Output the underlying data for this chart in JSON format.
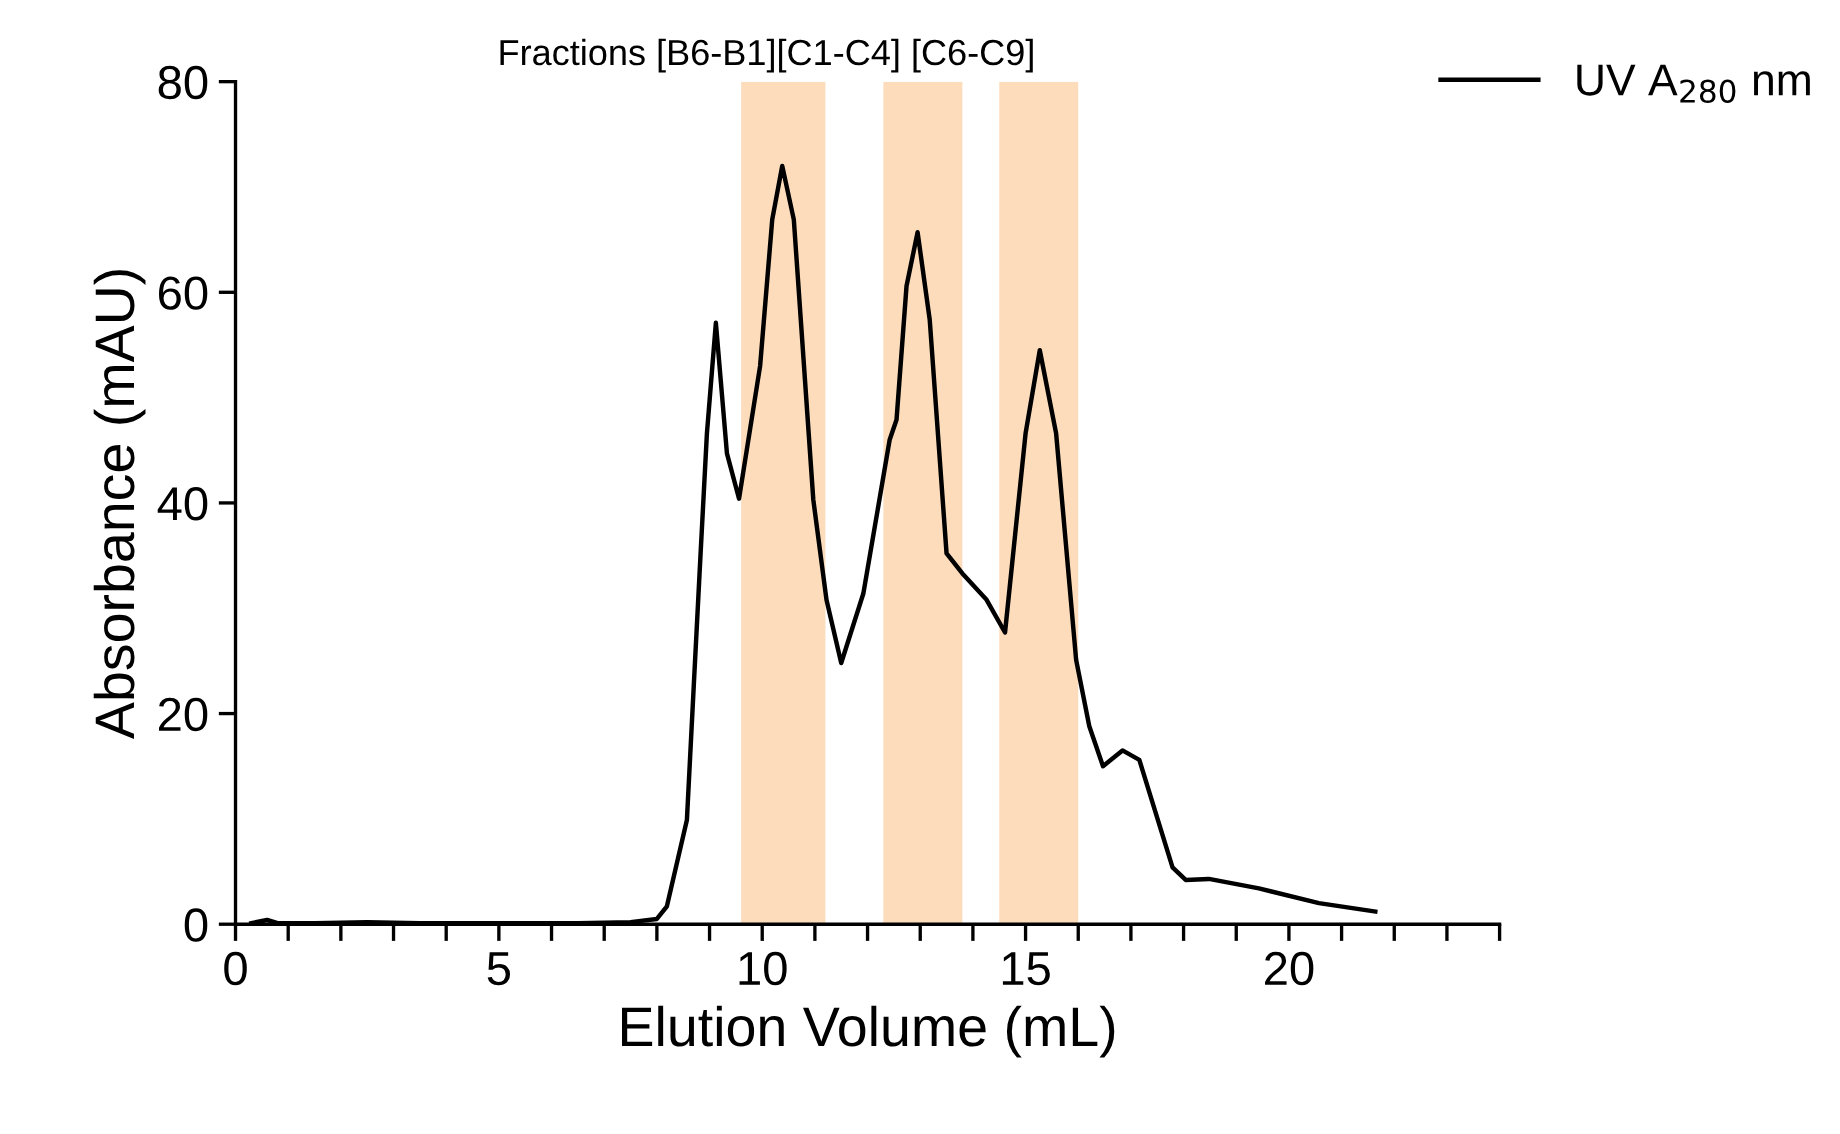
{
  "chart_data": {
    "type": "line",
    "title": "Fractions [B6-B1][C1-C4] [C6-C9]",
    "xlabel": "Elution Volume (mL)",
    "ylabel": "Absorbance (mAU)",
    "series": [
      {
        "name": "UV A$_{280}$ nm",
        "color": "#000000",
        "x": [
          0.3,
          0.6,
          0.8,
          1.5,
          2.5,
          3.5,
          5.0,
          6.5,
          7.5,
          8.0,
          8.19,
          8.57,
          8.7,
          8.83,
          8.95,
          9.12,
          9.33,
          9.56,
          9.96,
          10.19,
          10.38,
          10.6,
          10.97,
          11.22,
          11.5,
          11.92,
          12.42,
          12.55,
          12.74,
          12.95,
          13.18,
          13.5,
          13.8,
          14.26,
          14.61,
          15.0,
          15.27,
          15.58,
          15.96,
          16.21,
          16.47,
          16.84,
          17.16,
          17.79,
          18.04,
          18.48,
          19.43,
          20.57,
          21.64
        ],
        "values": [
          0.1,
          0.4,
          0.1,
          0.1,
          0.2,
          0.1,
          0.1,
          0.1,
          0.2,
          0.5,
          1.7,
          9.9,
          22.6,
          35.2,
          46.6,
          57.1,
          44.7,
          40.4,
          53.0,
          66.9,
          72.0,
          66.9,
          40.3,
          30.8,
          24.8,
          31.4,
          46.0,
          47.9,
          60.6,
          65.7,
          57.4,
          35.2,
          33.3,
          30.8,
          27.7,
          46.6,
          54.5,
          46.6,
          25.1,
          18.8,
          15.0,
          16.5,
          15.6,
          5.4,
          4.2,
          4.3,
          3.4,
          2.0,
          1.2
        ]
      }
    ],
    "bands": [
      {
        "axis": "x",
        "from": 9.6,
        "to": 11.2,
        "color": "#fddcbc"
      },
      {
        "axis": "x",
        "from": 12.3,
        "to": 13.8,
        "color": "#fddcbc"
      },
      {
        "axis": "x",
        "from": 14.5,
        "to": 16.0,
        "color": "#fddcbc"
      }
    ],
    "xlim": [
      0,
      24
    ],
    "ylim": [
      0,
      80
    ],
    "xticks": [
      0,
      {
        "value": 1,
        "label": null
      },
      {
        "value": 2,
        "label": null
      },
      {
        "value": 3,
        "label": null
      },
      {
        "value": 4,
        "label": null
      },
      5,
      {
        "value": 6,
        "label": null
      },
      {
        "value": 7,
        "label": null
      },
      {
        "value": 8,
        "label": null
      },
      {
        "value": 9,
        "label": null
      },
      10,
      {
        "value": 11,
        "label": null
      },
      {
        "value": 12,
        "label": null
      },
      {
        "value": 13,
        "label": null
      },
      {
        "value": 14,
        "label": null
      },
      15,
      {
        "value": 16,
        "label": null
      },
      {
        "value": 17,
        "label": null
      },
      {
        "value": 18,
        "label": null
      },
      {
        "value": 19,
        "label": null
      },
      20,
      {
        "value": 21,
        "label": null
      },
      {
        "value": 22,
        "label": null
      },
      {
        "value": 23,
        "label": null
      },
      {
        "value": 24,
        "label": null
      }
    ],
    "yticks": [
      0,
      20,
      40,
      60,
      80
    ],
    "grid": false,
    "legend": "top right",
    "marker": "none",
    "line_style": "solid"
  }
}
